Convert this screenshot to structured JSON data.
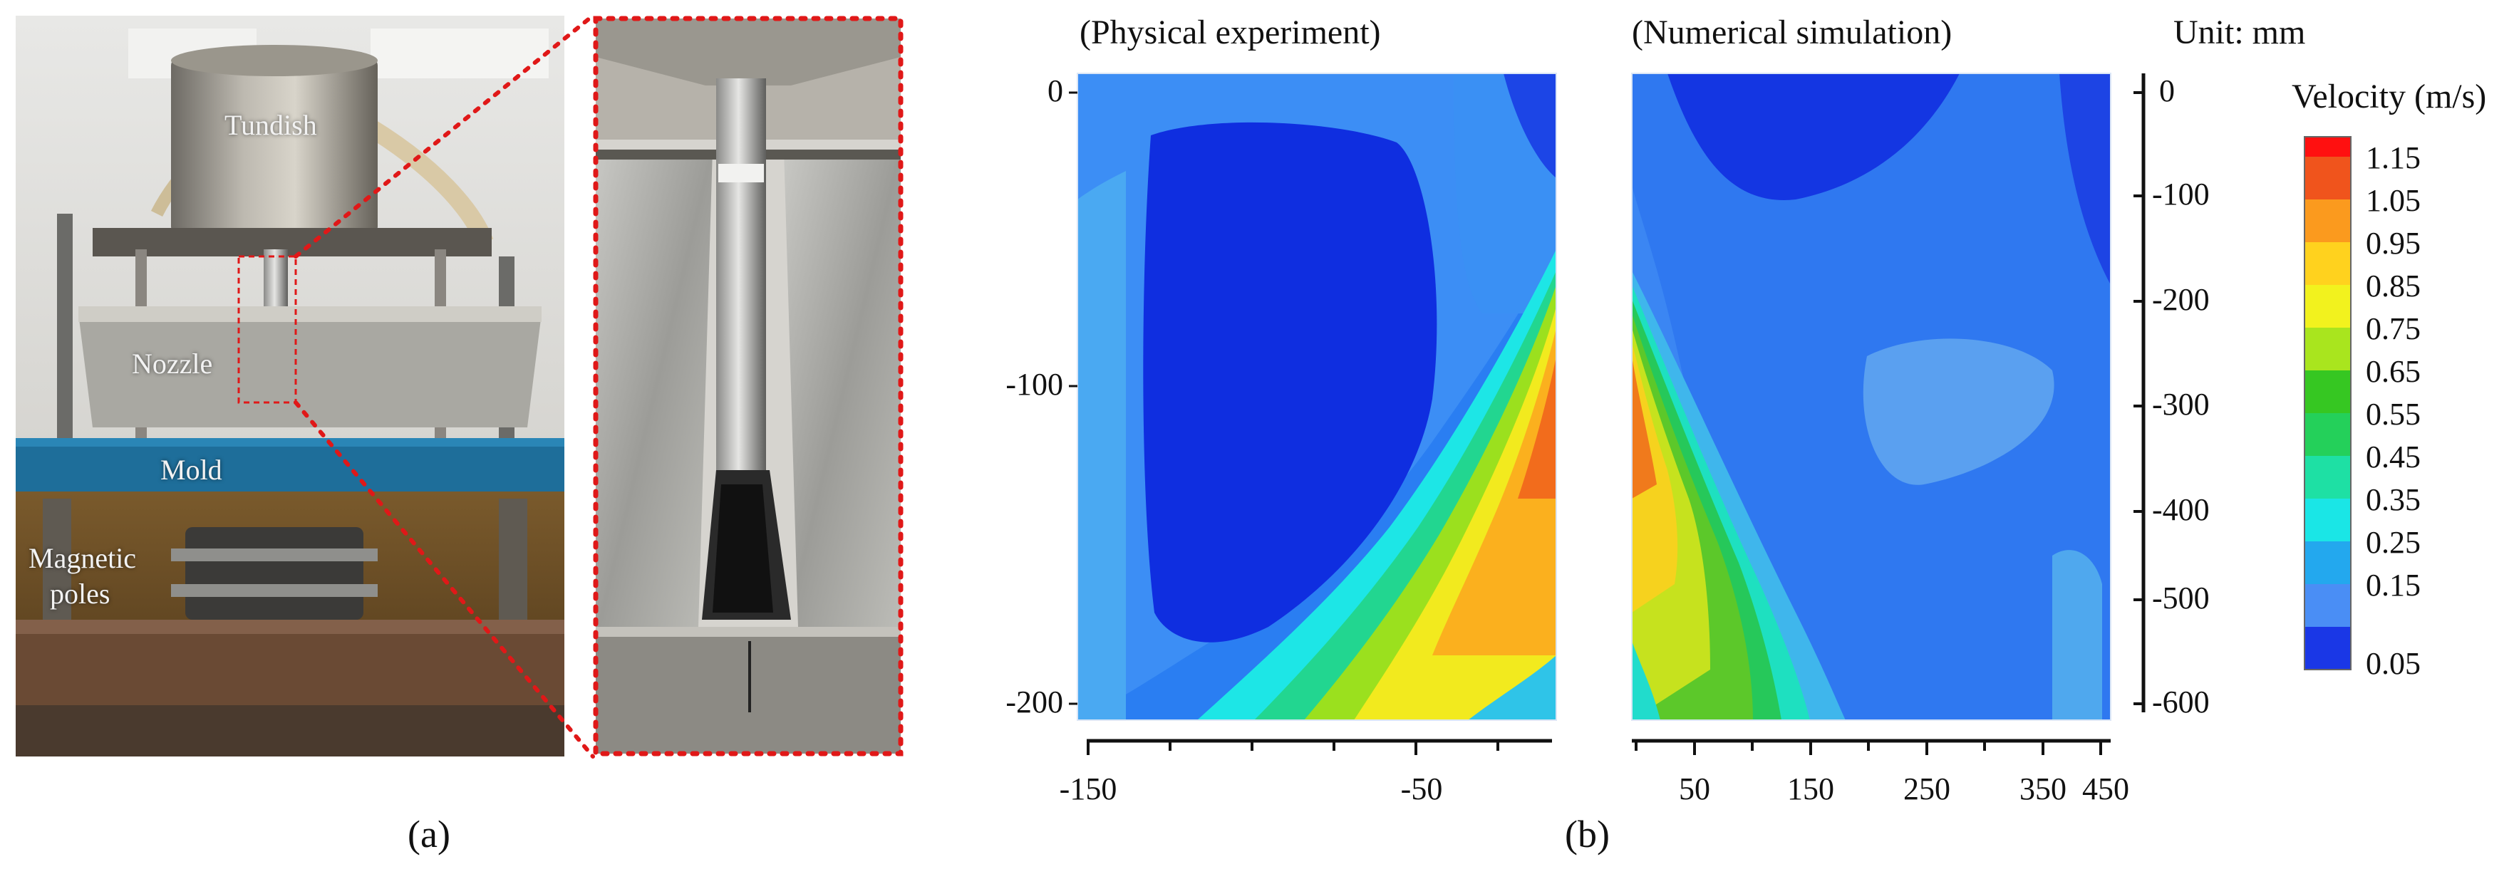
{
  "figure": {
    "panel_a": {
      "caption": "(a)",
      "labels": {
        "tundish": "Tundish",
        "nozzle": "Nozzle",
        "mold": "Mold",
        "magnetic": "Magnetic",
        "poles": "poles"
      }
    },
    "panel_b": {
      "caption": "(b)",
      "unit": "Unit: mm",
      "experiment": {
        "title": "(Physical experiment)",
        "y_ticks": [
          "0",
          "-100",
          "-200"
        ],
        "x_ticks": [
          "-150",
          "-50"
        ]
      },
      "simulation": {
        "title": "(Numerical simulation)",
        "y_ticks": [
          "0",
          "-100",
          "-200",
          "-300",
          "-400",
          "-500",
          "-600"
        ],
        "x_ticks": [
          "50",
          "150",
          "250",
          "350",
          "450"
        ]
      },
      "legend": {
        "title": "Velocity (m/s)",
        "labels": [
          "1.15",
          "1.05",
          "0.95",
          "0.85",
          "0.75",
          "0.65",
          "0.55",
          "0.45",
          "0.35",
          "0.25",
          "0.15",
          "0.05"
        ],
        "colors": [
          "#ff1010",
          "#f0541c",
          "#fb9a1e",
          "#ffd21e",
          "#f2f21e",
          "#a9e51e",
          "#36c722",
          "#24d05a",
          "#1ee0a4",
          "#1ae6e6",
          "#23a8ee",
          "#4a8ef5",
          "#1a37e6"
        ]
      }
    }
  }
}
